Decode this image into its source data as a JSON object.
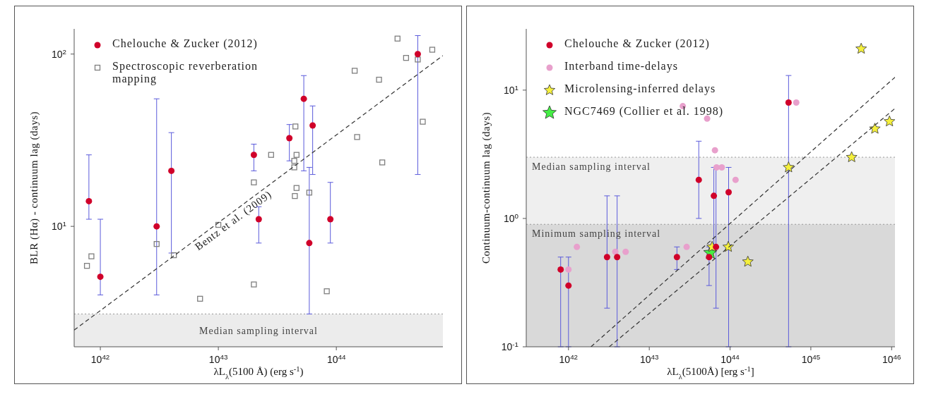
{
  "chart_data": [
    {
      "type": "scatter",
      "xlabel": "λL$_{λ}$(5100 Å)   (erg s$^{-1}$)",
      "ylabel": "BLR (Hα) - continuum lag (days)",
      "log": "xy",
      "legend": "top left",
      "grid": false,
      "xlim": [
        6e+41,
        8e+44
      ],
      "xticks": [
        {
          "value": 1e+42,
          "label": "10$^{42}$"
        },
        {
          "value": 1e+43,
          "label": "10$^{43}$"
        },
        {
          "value": 1e+44,
          "label": "10$^{44}$"
        }
      ],
      "ylim": [
        2,
        140
      ],
      "yticks": [
        {
          "value": 10,
          "label": "10$^{1}$"
        },
        {
          "value": 100,
          "label": "10$^{2}$"
        }
      ],
      "bands": [
        {
          "axis": "y",
          "from": 2,
          "to": 3.1,
          "label": "Median sampling interval",
          "color": "#ececec"
        }
      ],
      "ref_lines": [
        {
          "axis": "y",
          "value": 3.1,
          "color": "#999999",
          "line_style": "dotted"
        }
      ],
      "series": [
        {
          "type": "scatter",
          "name": "Chelouche & Zucker (2012)",
          "color": "#d0002a",
          "marker": "circle",
          "x": [
            8e+41,
            1e+42,
            3e+42,
            4e+42,
            2e+43,
            2.2e+43,
            4e+43,
            5.3e+43,
            5.9e+43,
            6.3e+43,
            8.9e+43,
            4.9e+44
          ],
          "values": [
            14,
            5.1,
            10,
            21,
            26,
            11,
            32.5,
            55,
            8,
            38.5,
            11,
            100
          ],
          "errors": [
            [
              11,
              26
            ],
            [
              4,
              11
            ],
            [
              4,
              55
            ],
            [
              7,
              35
            ],
            [
              21,
              30
            ],
            [
              8,
              13
            ],
            [
              24,
              39
            ],
            [
              21,
              75
            ],
            [
              3.1,
              22
            ],
            [
              20,
              50
            ],
            [
              8,
              18
            ],
            [
              20,
              128
            ]
          ]
        },
        {
          "type": "line",
          "name": "Bentz et al. (2009)",
          "color": "#333333",
          "line_style": "dashed",
          "marker": "none",
          "x": [
            6e+41,
            8e+44
          ],
          "values": [
            2.5,
            98
          ]
        },
        {
          "type": "scatter",
          "name": "Spectroscopic reverberation mapping",
          "color": "#7f7f7f",
          "marker": "square",
          "x": [
            7.7e+41,
            8.4e+41,
            3e+42,
            4.2e+42,
            7e+42,
            1e+43,
            2e+43,
            2e+43,
            2.8e+43,
            4.4e+43,
            4.4e+43,
            4.45e+43,
            4.5e+43,
            4.6e+43,
            4.6e+43,
            5.9e+43,
            8.3e+43,
            1.43e+44,
            1.5e+44,
            2.3e+44,
            2.45e+44,
            3.3e+44,
            3.9e+44,
            4.9e+44,
            5.4e+44,
            6.5e+44
          ],
          "values": [
            5.9,
            6.7,
            7.9,
            6.8,
            3.8,
            10.2,
            4.6,
            18,
            26,
            24,
            22,
            15,
            38,
            26,
            16.7,
            15.7,
            4.2,
            80,
            33,
            71,
            23.5,
            123,
            95,
            93,
            40.5,
            106
          ]
        }
      ]
    },
    {
      "type": "scatter",
      "xlabel": "λL$_{λ}$(5100Å) [erg s$^{-1}$]",
      "ylabel": "Continuum-continuum lag (days)",
      "log": "xy",
      "legend": "top left",
      "grid": false,
      "xlim": [
        3e+41,
        1.1e+46
      ],
      "xticks": [
        {
          "value": 1e+42,
          "label": "10$^{42}$"
        },
        {
          "value": 1e+43,
          "label": "10$^{43}$"
        },
        {
          "value": 1e+44,
          "label": "10$^{44}$"
        },
        {
          "value": 1e+45,
          "label": "10$^{45}$"
        },
        {
          "value": 1e+46,
          "label": "10$^{46}$"
        }
      ],
      "ylim": [
        0.1,
        30
      ],
      "yticks": [
        {
          "value": 0.1,
          "label": "10$^{-1}$"
        },
        {
          "value": 1,
          "label": "10$^{0}$"
        },
        {
          "value": 10,
          "label": "10$^{1}$"
        }
      ],
      "bands": [
        {
          "axis": "y",
          "from": 0.1,
          "to": 3,
          "label": "Median sampling interval",
          "color": "#efefef"
        },
        {
          "axis": "y",
          "from": 0.1,
          "to": 0.9,
          "label": "Minimum sampling interval",
          "color": "#d9d9d9"
        }
      ],
      "ref_lines": [
        {
          "axis": "y",
          "value": 3,
          "color": "#999999",
          "line_style": "dotted"
        },
        {
          "axis": "y",
          "value": 0.9,
          "color": "#999999",
          "line_style": "dotted"
        }
      ],
      "series": [
        {
          "type": "line",
          "color": "#333333",
          "line_style": "dashed",
          "marker": "none",
          "x": [
            1.9e+42,
            1.1e+46
          ],
          "values": [
            0.1,
            12.6
          ]
        },
        {
          "type": "line",
          "color": "#333333",
          "line_style": "dashed",
          "marker": "none",
          "x": [
            3.2e+42,
            1.1e+46
          ],
          "values": [
            0.1,
            7.2
          ]
        },
        {
          "type": "scatter",
          "name": "Chelouche & Zucker (2012)",
          "color": "#d0002a",
          "marker": "circle",
          "x": [
            8e+41,
            1e+42,
            3e+42,
            4e+42,
            2.2e+43,
            4.1e+43,
            5.5e+43,
            6.3e+43,
            6.7e+43,
            9.6e+43,
            5.3e+44
          ],
          "values": [
            0.4,
            0.3,
            0.5,
            0.5,
            0.5,
            2.0,
            0.5,
            1.5,
            0.6,
            1.6,
            8.0
          ],
          "errors": [
            [
              0.1,
              0.5
            ],
            [
              0.1,
              0.5
            ],
            [
              0.2,
              1.5
            ],
            [
              0.1,
              1.5
            ],
            [
              0.4,
              0.6
            ],
            [
              1.0,
              4.0
            ],
            [
              0.3,
              0.6
            ],
            [
              0.6,
              2.5
            ],
            [
              0.2,
              2.5
            ],
            [
              0.1,
              2.5
            ],
            [
              0.1,
              13
            ]
          ]
        },
        {
          "type": "scatter",
          "name": "Interband time-delays",
          "color": "#e8a0cc",
          "marker": "circle",
          "x": [
            1e+42,
            1.27e+42,
            3.8e+42,
            5.1e+42,
            2.6e+43,
            2.9e+43,
            5.2e+43,
            6.5e+43,
            6.8e+43,
            7.9e+43,
            1.17e+44,
            6.6e+44
          ],
          "values": [
            0.4,
            0.6,
            0.55,
            0.55,
            7.5,
            0.6,
            6.0,
            3.4,
            2.5,
            2.5,
            2.0,
            8.0
          ]
        },
        {
          "type": "scatter",
          "name": "Microlensing-inferred delays",
          "color": "#f5f03c",
          "marker": "star",
          "x": [
            6e+43,
            9.5e+43,
            1.66e+44,
            5.3e+44,
            3.2e+45,
            4.2e+45,
            6.2e+45,
            9.4e+45
          ],
          "values": [
            0.6,
            0.6,
            0.46,
            2.5,
            3.0,
            21,
            5.0,
            5.7
          ]
        },
        {
          "type": "scatter",
          "name": "NGC7469 (Collier et al. 1998)",
          "color": "#44ee44",
          "marker": "star",
          "x": [
            5.7e+43
          ],
          "values": [
            0.54
          ]
        }
      ]
    }
  ]
}
